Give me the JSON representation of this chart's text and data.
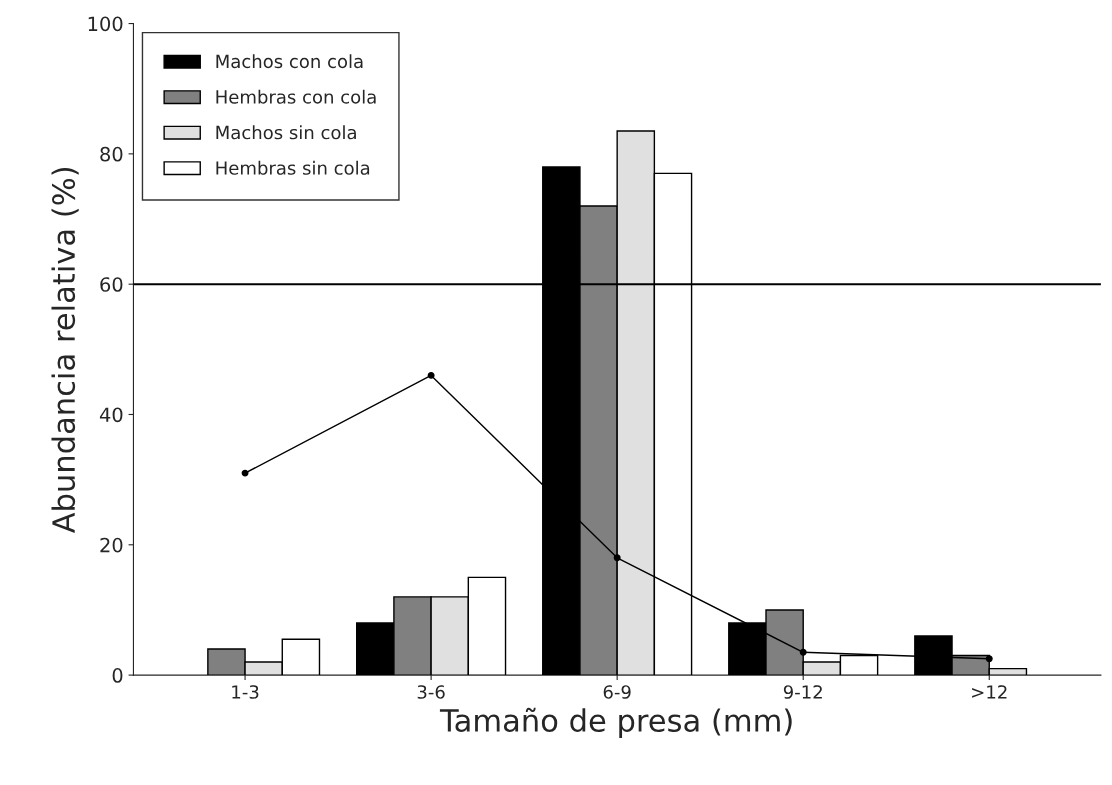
{
  "chart_data": {
    "type": "bar",
    "xlabel": "Tamaño de presa (mm)",
    "ylabel": "Abundancia relativa (%)",
    "categories": [
      "1-3",
      "3-6",
      "6-9",
      "9-12",
      ">12"
    ],
    "series": [
      {
        "name": "Machos con cola",
        "color": "#000000",
        "values": [
          null,
          8,
          78,
          8,
          6
        ]
      },
      {
        "name": "Hembras con cola",
        "color": "#808080",
        "values": [
          4,
          12,
          72,
          10,
          3
        ]
      },
      {
        "name": "Machos sin cola",
        "color": "#e0e0e0",
        "values": [
          2,
          12,
          83.5,
          2,
          1
        ]
      },
      {
        "name": "Hembras sin cola",
        "color": "#ffffff",
        "values": [
          5.5,
          15,
          77,
          3,
          null
        ]
      },
      {
        "type": "line",
        "color": "#000000",
        "values": [
          31,
          46,
          18,
          3.5,
          2.5
        ]
      }
    ],
    "ylim": [
      0,
      100
    ],
    "yticks": [
      0,
      20,
      40,
      60,
      80,
      100
    ],
    "ref_lines": [
      {
        "axis": "y",
        "value": 60,
        "color": "#000000",
        "line_style": "solid"
      }
    ],
    "grid": false,
    "legend": "top left",
    "marker": "circle"
  }
}
